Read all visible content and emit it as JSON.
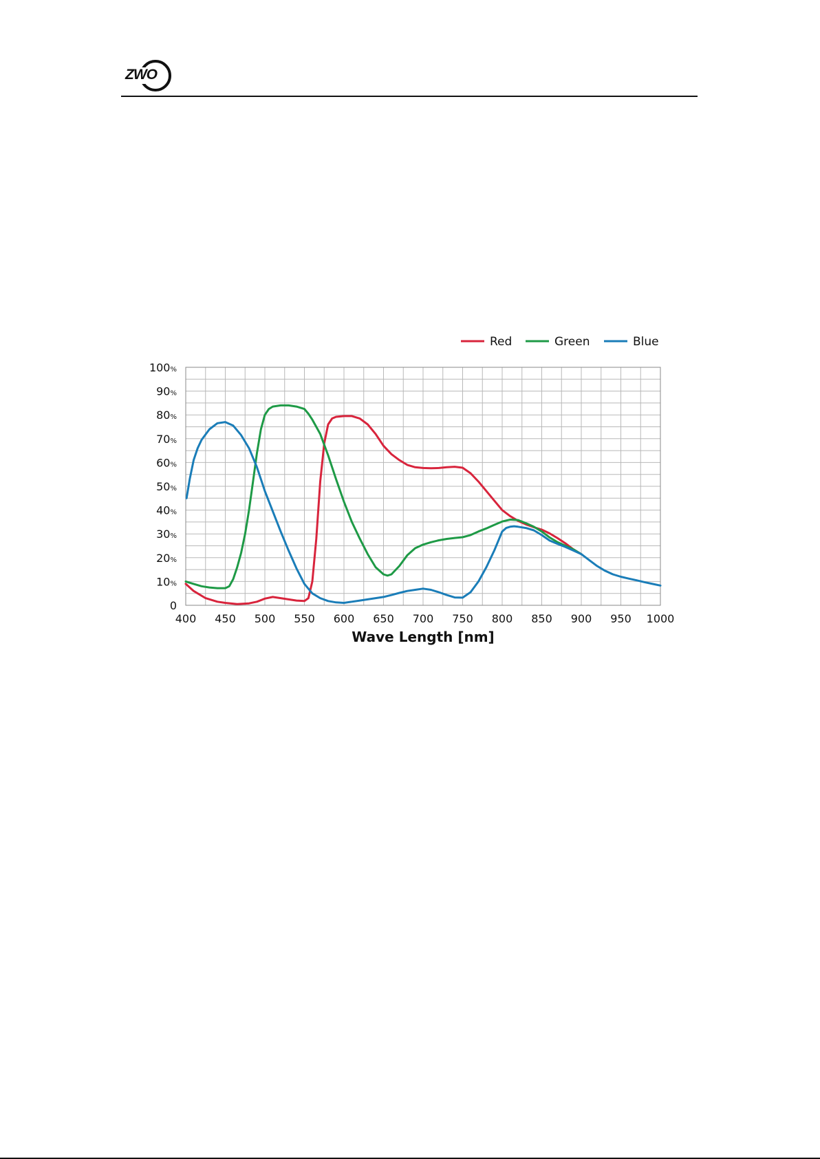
{
  "header": {
    "logo_text": "ZWO"
  },
  "chart_data": {
    "type": "line",
    "title": "",
    "xlabel": "Wave Length [nm]",
    "ylabel": "",
    "xlim": [
      400,
      1000
    ],
    "ylim": [
      0,
      100
    ],
    "xticks": [
      "400",
      "450",
      "500",
      "550",
      "600",
      "650",
      "700",
      "750",
      "800",
      "850",
      "900",
      "950",
      "1000"
    ],
    "yticks": [
      {
        "value": 0,
        "num": "0",
        "unit": ""
      },
      {
        "value": 10,
        "num": "10",
        "unit": "%"
      },
      {
        "value": 20,
        "num": "20",
        "unit": "%"
      },
      {
        "value": 30,
        "num": "30",
        "unit": "%"
      },
      {
        "value": 40,
        "num": "40",
        "unit": "%"
      },
      {
        "value": 50,
        "num": "50",
        "unit": "%"
      },
      {
        "value": 60,
        "num": "60",
        "unit": "%"
      },
      {
        "value": 70,
        "num": "70",
        "unit": "%"
      },
      {
        "value": 80,
        "num": "80",
        "unit": "%"
      },
      {
        "value": 90,
        "num": "90",
        "unit": "%"
      },
      {
        "value": 100,
        "num": "100",
        "unit": "%"
      }
    ],
    "grid": true,
    "minor_grid_step_x": 25,
    "minor_grid_step_y": 5,
    "legend_position": "top-right",
    "series": [
      {
        "name": "Red",
        "color": "#d8243c",
        "x": [
          400,
          410,
          425,
          440,
          450,
          465,
          480,
          490,
          500,
          510,
          520,
          530,
          540,
          550,
          555,
          560,
          565,
          570,
          575,
          580,
          585,
          590,
          600,
          610,
          620,
          630,
          640,
          650,
          660,
          670,
          680,
          690,
          700,
          710,
          720,
          730,
          740,
          750,
          760,
          770,
          780,
          790,
          800,
          810,
          820,
          830,
          840,
          850,
          860,
          870,
          880,
          890,
          900
        ],
        "y": [
          9,
          6,
          3,
          1.5,
          1,
          0.5,
          0.8,
          1.5,
          2.8,
          3.5,
          3,
          2.5,
          2,
          1.8,
          3,
          10,
          28,
          52,
          68,
          76,
          78.5,
          79.2,
          79.5,
          79.5,
          78.5,
          76,
          72,
          67,
          63.5,
          61,
          59,
          58,
          57.7,
          57.6,
          57.7,
          58,
          58.2,
          57.8,
          55.5,
          52,
          48,
          44,
          40,
          37.5,
          35.5,
          34,
          32.8,
          31.8,
          30.2,
          28.2,
          26,
          23.5,
          21.5
        ]
      },
      {
        "name": "Green",
        "color": "#1e9a46",
        "x": [
          400,
          410,
          420,
          430,
          440,
          450,
          455,
          460,
          465,
          470,
          475,
          480,
          485,
          490,
          495,
          500,
          505,
          510,
          520,
          530,
          540,
          550,
          555,
          560,
          570,
          580,
          590,
          600,
          610,
          620,
          630,
          640,
          650,
          655,
          660,
          670,
          680,
          690,
          700,
          710,
          720,
          730,
          740,
          750,
          760,
          770,
          780,
          790,
          800,
          810,
          820,
          830,
          840,
          850,
          860,
          870,
          880,
          890,
          900
        ],
        "y": [
          10,
          9,
          8,
          7.5,
          7.2,
          7.2,
          8,
          11,
          16,
          22,
          30,
          40,
          52,
          64,
          74,
          80,
          82.5,
          83.5,
          84,
          84,
          83.5,
          82.5,
          80.5,
          78,
          72,
          63,
          53,
          43.5,
          35,
          28,
          21.5,
          16,
          13,
          12.5,
          13,
          16.5,
          21,
          24,
          25.5,
          26.5,
          27.3,
          27.9,
          28.3,
          28.6,
          29.5,
          31,
          32.3,
          33.8,
          35.2,
          36,
          35.8,
          34.5,
          33,
          31,
          28.5,
          26.5,
          25,
          23.5,
          21.5
        ]
      },
      {
        "name": "Blue",
        "color": "#1a7db8",
        "x": [
          401,
          405,
          410,
          415,
          420,
          430,
          440,
          450,
          460,
          470,
          480,
          490,
          500,
          510,
          520,
          530,
          540,
          550,
          560,
          570,
          580,
          590,
          600,
          610,
          620,
          630,
          640,
          650,
          660,
          670,
          680,
          690,
          700,
          710,
          720,
          730,
          740,
          750,
          760,
          770,
          780,
          790,
          800,
          805,
          810,
          815,
          820,
          830,
          840,
          850,
          860,
          870,
          880,
          890,
          900,
          910,
          920,
          930,
          940,
          950,
          960,
          970,
          980,
          990,
          1000
        ],
        "y": [
          45,
          53,
          61,
          66,
          69.5,
          74,
          76.5,
          77,
          75.5,
          71.5,
          66,
          58,
          48,
          39.5,
          31,
          23,
          15.5,
          9,
          5,
          3,
          1.8,
          1.2,
          1,
          1.5,
          2,
          2.5,
          3,
          3.5,
          4.3,
          5.2,
          6,
          6.5,
          7,
          6.5,
          5.5,
          4.3,
          3.3,
          3.2,
          5.5,
          10,
          16,
          23,
          31,
          32.5,
          33,
          33.2,
          33,
          32.5,
          31.5,
          29.5,
          27.2,
          25.8,
          24.5,
          23,
          21.5,
          19,
          16.5,
          14.5,
          13,
          12,
          11.2,
          10.5,
          9.7,
          9,
          8.3
        ]
      }
    ]
  }
}
